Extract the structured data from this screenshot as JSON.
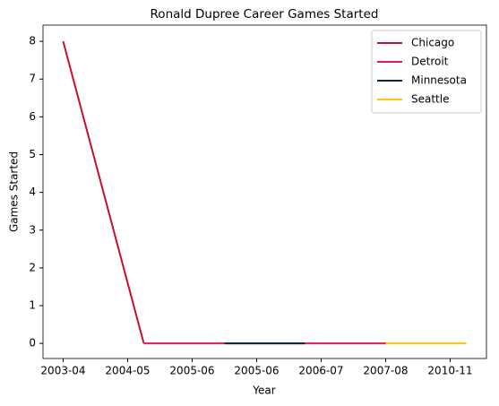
{
  "chart_data": {
    "type": "line",
    "title": "Ronald Dupree Career Games Started",
    "xlabel": "Year",
    "ylabel": "Games Started",
    "x": [
      0,
      1,
      2,
      3,
      4,
      5
    ],
    "series": [
      {
        "name": "Chicago",
        "color": "#c8102e",
        "values": [
          8,
          0,
          null,
          null,
          null,
          null
        ]
      },
      {
        "name": "Detroit",
        "color": "#e31b54",
        "values": [
          null,
          0,
          0,
          0,
          0,
          null
        ]
      },
      {
        "name": "Minnesota",
        "color": "#0c2340",
        "values": [
          null,
          null,
          0,
          0,
          null,
          null
        ]
      },
      {
        "name": "Seattle",
        "color": "#ffc20e",
        "values": [
          null,
          null,
          null,
          null,
          0,
          0
        ]
      }
    ],
    "xlim": [
      -0.25,
      5.25
    ],
    "xticks": [
      {
        "value": 0,
        "label": "2003-04"
      },
      {
        "value": 0.8,
        "label": "2004-05"
      },
      {
        "value": 1.6,
        "label": "2005-06"
      },
      {
        "value": 2.4,
        "label": "2005-06"
      },
      {
        "value": 3.2,
        "label": "2006-07"
      },
      {
        "value": 4.0,
        "label": "2007-08"
      },
      {
        "value": 4.8,
        "label": "2010-11"
      }
    ],
    "ylim": [
      -0.4,
      8.43
    ],
    "yticks": [
      0,
      1,
      2,
      3,
      4,
      5,
      6,
      7,
      8
    ],
    "legend": "upper right"
  }
}
